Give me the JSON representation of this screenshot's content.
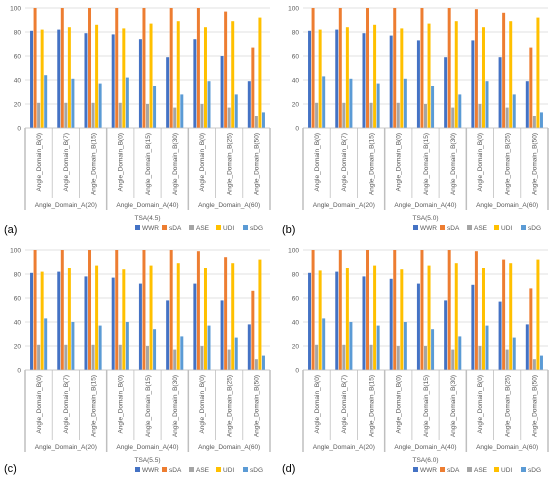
{
  "figure": {
    "series_names": [
      "WWR",
      "sDA",
      "ASE",
      "UDI",
      "sDG"
    ],
    "colors": {
      "WWR": "#4472c4",
      "sDA": "#ed7d31",
      "ASE": "#a5a5a5",
      "UDI": "#ffc000",
      "sDG": "#5b9bd5",
      "grid": "#d9d9d9",
      "axis_text": "#595959",
      "outer_text": "#000000"
    }
  },
  "chart_data": [
    {
      "type": "bar",
      "panel_label": "(a)",
      "title": "",
      "xlabel": "TSA(4.5)",
      "ylabel": "",
      "ylim": [
        0,
        100
      ],
      "yticks": [
        0,
        20,
        40,
        60,
        80,
        100
      ],
      "grid": true,
      "legend_position": "bottom",
      "categories": [
        "Angle_Domain_B(0)",
        "Angle_Domain_B(7)",
        "Angle_Domain_B(15)",
        "Angle_Domain_B(0)",
        "Angle_Domain_B(15)",
        "Angle_Domain_B(30)",
        "Angle_Domain_B(0)",
        "Angle_Domain_B(25)",
        "Angle_Domain_B(50)"
      ],
      "groups": [
        {
          "label": "Angle_Domain_A(20)",
          "count": 3
        },
        {
          "label": "Angle_Domain_A(40)",
          "count": 3
        },
        {
          "label": "Angle_Domain_A(60)",
          "count": 3
        }
      ],
      "series": [
        {
          "name": "WWR",
          "values": [
            81,
            82,
            79,
            78,
            74,
            59,
            74,
            60,
            39
          ]
        },
        {
          "name": "sDA",
          "values": [
            100,
            100,
            100,
            100,
            100,
            100,
            100,
            97,
            67
          ]
        },
        {
          "name": "ASE",
          "values": [
            21,
            21,
            21,
            21,
            20,
            17,
            20,
            17,
            10
          ]
        },
        {
          "name": "UDI",
          "values": [
            82,
            84,
            86,
            83,
            87,
            89,
            84,
            89,
            92
          ]
        },
        {
          "name": "sDG",
          "values": [
            44,
            41,
            37,
            42,
            35,
            28,
            39,
            28,
            13
          ]
        }
      ]
    },
    {
      "type": "bar",
      "panel_label": "(b)",
      "title": "",
      "xlabel": "TSA(5.0)",
      "ylabel": "",
      "ylim": [
        0,
        100
      ],
      "yticks": [
        0,
        20,
        40,
        60,
        80,
        100
      ],
      "grid": true,
      "legend_position": "bottom",
      "categories": [
        "Angle_Domain_B(0)",
        "Angle_Domain_B(7)",
        "Angle_Domain_B(15)",
        "Angle_Domain_B(0)",
        "Angle_Domain_B(15)",
        "Angle_Domain_B(30)",
        "Angle_Domain_B(0)",
        "Angle_Domain_B(25)",
        "Angle_Domain_B(50)"
      ],
      "groups": [
        {
          "label": "Angle_Domain_A(20)",
          "count": 3
        },
        {
          "label": "Angle_Domain_A(40)",
          "count": 3
        },
        {
          "label": "Angle_Domain_A(60)",
          "count": 3
        }
      ],
      "series": [
        {
          "name": "WWR",
          "values": [
            81,
            82,
            79,
            77,
            73,
            59,
            73,
            59,
            39
          ]
        },
        {
          "name": "sDA",
          "values": [
            100,
            100,
            100,
            100,
            100,
            100,
            99,
            96,
            67
          ]
        },
        {
          "name": "ASE",
          "values": [
            21,
            21,
            21,
            21,
            20,
            17,
            20,
            17,
            10
          ]
        },
        {
          "name": "UDI",
          "values": [
            82,
            84,
            86,
            83,
            87,
            89,
            84,
            89,
            92
          ]
        },
        {
          "name": "sDG",
          "values": [
            43,
            41,
            37,
            41,
            35,
            28,
            39,
            28,
            13
          ]
        }
      ]
    },
    {
      "type": "bar",
      "panel_label": "(c)",
      "title": "",
      "xlabel": "TSA(5.5)",
      "ylabel": "",
      "ylim": [
        0,
        100
      ],
      "yticks": [
        0,
        20,
        40,
        60,
        80,
        100
      ],
      "grid": true,
      "legend_position": "bottom",
      "categories": [
        "Angle_Domain_B(0)",
        "Angle_Domain_B(7)",
        "Angle_Domain_B(15)",
        "Angle_Domain_B(0)",
        "Angle_Domain_B(15)",
        "Angle_Domain_B(30)",
        "Angle_Domain_B(0)",
        "Angle_Domain_B(25)",
        "Angle_Domain_B(50)"
      ],
      "groups": [
        {
          "label": "Angle_Domain_A(20)",
          "count": 3
        },
        {
          "label": "Angle_Domain_A(40)",
          "count": 3
        },
        {
          "label": "Angle_Domain_A(60)",
          "count": 3
        }
      ],
      "series": [
        {
          "name": "WWR",
          "values": [
            81,
            82,
            78,
            77,
            72,
            58,
            72,
            58,
            38
          ]
        },
        {
          "name": "sDA",
          "values": [
            100,
            100,
            100,
            100,
            100,
            100,
            99,
            94,
            66
          ]
        },
        {
          "name": "ASE",
          "values": [
            21,
            21,
            21,
            21,
            20,
            17,
            20,
            17,
            9
          ]
        },
        {
          "name": "UDI",
          "values": [
            82,
            85,
            87,
            84,
            87,
            89,
            85,
            89,
            92
          ]
        },
        {
          "name": "sDG",
          "values": [
            43,
            40,
            37,
            40,
            34,
            28,
            37,
            27,
            12
          ]
        }
      ]
    },
    {
      "type": "bar",
      "panel_label": "(d)",
      "title": "",
      "xlabel": "TSA(6.0)",
      "ylabel": "",
      "ylim": [
        0,
        100
      ],
      "yticks": [
        0,
        20,
        40,
        60,
        80,
        100
      ],
      "grid": true,
      "legend_position": "bottom",
      "categories": [
        "Angle_Domain_B(0)",
        "Angle_Domain_B(7)",
        "Angle_Domain_B(15)",
        "Angle_Domain_B(0)",
        "Angle_Domain_B(15)",
        "Angle_Domain_B(30)",
        "Angle_Domain_B(0)",
        "Angle_Domain_B(25)",
        "Angle_Domain_B(50)"
      ],
      "groups": [
        {
          "label": "Angle_Domain_A(20)",
          "count": 3
        },
        {
          "label": "Angle_Domain_A(40)",
          "count": 3
        },
        {
          "label": "Angle_Domain_A(60)",
          "count": 3
        }
      ],
      "series": [
        {
          "name": "WWR",
          "values": [
            81,
            82,
            78,
            76,
            72,
            58,
            71,
            57,
            38
          ]
        },
        {
          "name": "sDA",
          "values": [
            100,
            100,
            100,
            100,
            100,
            100,
            99,
            92,
            68
          ]
        },
        {
          "name": "ASE",
          "values": [
            21,
            21,
            21,
            20,
            20,
            17,
            20,
            17,
            9
          ]
        },
        {
          "name": "UDI",
          "values": [
            83,
            85,
            87,
            84,
            87,
            89,
            85,
            89,
            92
          ]
        },
        {
          "name": "sDG",
          "values": [
            43,
            40,
            37,
            40,
            34,
            28,
            37,
            27,
            12
          ]
        }
      ]
    }
  ]
}
